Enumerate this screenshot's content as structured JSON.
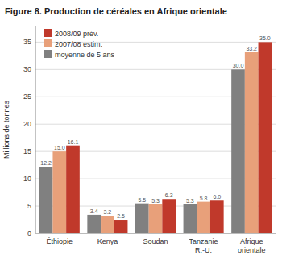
{
  "chart_data": {
    "type": "bar",
    "title": "Figure 8. Production de céréales en Afrique orientale",
    "y_label": "Millions de tonnes",
    "categories": [
      "Éthiopie",
      "Kenya",
      "Soudan",
      "Tanzanie\nR.-U.",
      "Afrique\norientale"
    ],
    "series": [
      {
        "name": "moyenne de 5 ans",
        "color": "#808080",
        "values": [
          12.2,
          3.4,
          5.5,
          5.3,
          30.0
        ]
      },
      {
        "name": "2007/08 estim.",
        "color": "#e8a07a",
        "values": [
          15.0,
          3.2,
          5.3,
          5.8,
          33.2
        ]
      },
      {
        "name": "2008/09 prév.",
        "color": "#c0392b",
        "values": [
          16.1,
          2.5,
          6.3,
          6.0,
          35.0
        ]
      }
    ],
    "ylim": [
      0,
      38
    ],
    "yticks": [
      0,
      5,
      10,
      15,
      20,
      25,
      30,
      35
    ],
    "grid": true,
    "legend": "upper left",
    "data_labels": true,
    "value_labels": [
      [
        "12.2",
        "3.4",
        "5.5",
        "5.3",
        "30.0"
      ],
      [
        "15.0",
        "3.2",
        "5.3",
        "5.8",
        "33.2"
      ],
      [
        "16.1",
        "2.5",
        "6.3",
        "6.0",
        "35.0"
      ]
    ]
  }
}
